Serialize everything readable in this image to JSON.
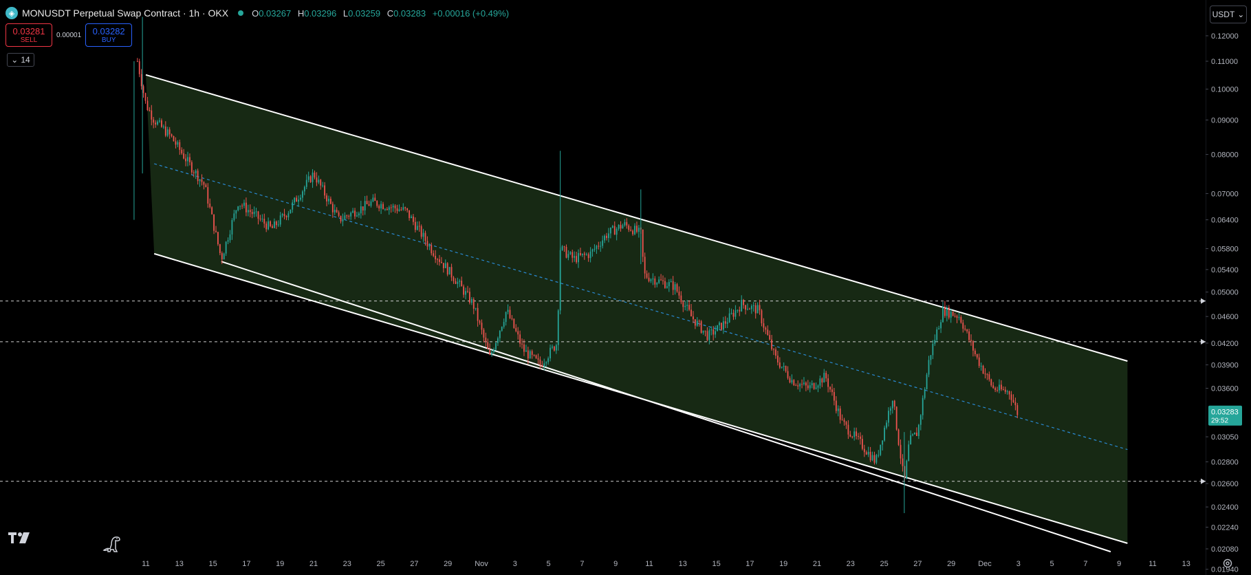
{
  "header": {
    "symbol_glyph": "◈",
    "title": "MONUSDT Perpetual Swap Contract · 1h · OKX",
    "ohlc": {
      "o_label": "O",
      "o_value": "0.03267",
      "h_label": "H",
      "h_value": "0.03296",
      "l_label": "L",
      "l_value": "0.03259",
      "c_label": "C",
      "c_value": "0.03283",
      "change": "+0.00016 (+0.49%)"
    }
  },
  "trade": {
    "sell_price": "0.03281",
    "sell_label": "SELL",
    "spread": "0.00001",
    "buy_price": "0.03282",
    "buy_label": "BUY"
  },
  "indicator_toggle": {
    "chevron": "⌄",
    "value": "14"
  },
  "currency": {
    "label": "USDT",
    "chevron": "⌄"
  },
  "colors": {
    "up": "#26a69a",
    "down": "#ef5350",
    "channel_fill": "#1b3018",
    "channel_line": "#ffffff",
    "midline": "#2a8ad4",
    "current_price_bg": "#26a69a",
    "horizontal_line": "#cfcfcf"
  },
  "chart_data": {
    "type": "candlestick",
    "price_axis_labels": [
      "0.12000",
      "0.11000",
      "0.10000",
      "0.09000",
      "0.08000",
      "0.07000",
      "0.06400",
      "0.05800",
      "0.05400",
      "0.05000",
      "0.04600",
      "0.04200",
      "0.03900",
      "0.03600",
      "0.03283",
      "0.03050",
      "0.02800",
      "0.02600",
      "0.02400",
      "0.02240",
      "0.02080",
      "0.01940"
    ],
    "current_price": {
      "value": "0.03283",
      "countdown": "29:52"
    },
    "time_axis_labels": [
      "11",
      "13",
      "15",
      "17",
      "19",
      "21",
      "23",
      "25",
      "27",
      "29",
      "Nov",
      "3",
      "5",
      "7",
      "9",
      "11",
      "13",
      "15",
      "17",
      "19",
      "21",
      "23",
      "25",
      "27",
      "29",
      "Dec",
      "3",
      "5",
      "7",
      "9",
      "11",
      "13"
    ],
    "horizontal_levels": [
      0.0485,
      0.0422,
      0.0262
    ],
    "price_path": [
      {
        "t": 0,
        "p": 0.11
      },
      {
        "t": 0.5,
        "p": 0.095
      },
      {
        "t": 1.0,
        "p": 0.09
      },
      {
        "t": 2.0,
        "p": 0.085
      },
      {
        "t": 3.0,
        "p": 0.078
      },
      {
        "t": 4.0,
        "p": 0.072
      },
      {
        "t": 5.0,
        "p": 0.056
      },
      {
        "t": 6.0,
        "p": 0.068
      },
      {
        "t": 7.0,
        "p": 0.065
      },
      {
        "t": 8.0,
        "p": 0.062
      },
      {
        "t": 9.0,
        "p": 0.066
      },
      {
        "t": 10.5,
        "p": 0.075
      },
      {
        "t": 12.0,
        "p": 0.064
      },
      {
        "t": 14.0,
        "p": 0.068
      },
      {
        "t": 16.0,
        "p": 0.066
      },
      {
        "t": 17.5,
        "p": 0.058
      },
      {
        "t": 19.0,
        "p": 0.052
      },
      {
        "t": 20.0,
        "p": 0.048
      },
      {
        "t": 21.0,
        "p": 0.04
      },
      {
        "t": 22.0,
        "p": 0.047
      },
      {
        "t": 23.0,
        "p": 0.041
      },
      {
        "t": 24.0,
        "p": 0.039
      },
      {
        "t": 25.0,
        "p": 0.042
      },
      {
        "t": 25.2,
        "p": 0.058
      },
      {
        "t": 26.0,
        "p": 0.056
      },
      {
        "t": 27.0,
        "p": 0.057
      },
      {
        "t": 28.0,
        "p": 0.061
      },
      {
        "t": 29.0,
        "p": 0.063
      },
      {
        "t": 30.0,
        "p": 0.061
      },
      {
        "t": 30.2,
        "p": 0.053
      },
      {
        "t": 31.0,
        "p": 0.052
      },
      {
        "t": 32.0,
        "p": 0.051
      },
      {
        "t": 33.0,
        "p": 0.046
      },
      {
        "t": 34.0,
        "p": 0.043
      },
      {
        "t": 35.0,
        "p": 0.045
      },
      {
        "t": 36.0,
        "p": 0.048
      },
      {
        "t": 37.0,
        "p": 0.047
      },
      {
        "t": 38.0,
        "p": 0.04
      },
      {
        "t": 39.0,
        "p": 0.037
      },
      {
        "t": 40.0,
        "p": 0.036
      },
      {
        "t": 41.0,
        "p": 0.0375
      },
      {
        "t": 42.0,
        "p": 0.032
      },
      {
        "t": 43.0,
        "p": 0.03
      },
      {
        "t": 44.0,
        "p": 0.028
      },
      {
        "t": 45.0,
        "p": 0.035
      },
      {
        "t": 45.7,
        "p": 0.026
      },
      {
        "t": 46.0,
        "p": 0.03
      },
      {
        "t": 46.5,
        "p": 0.031
      },
      {
        "t": 47.2,
        "p": 0.04
      },
      {
        "t": 48.0,
        "p": 0.047
      },
      {
        "t": 49.0,
        "p": 0.046
      },
      {
        "t": 50.0,
        "p": 0.04
      },
      {
        "t": 51.0,
        "p": 0.036
      },
      {
        "t": 52.0,
        "p": 0.0355
      },
      {
        "t": 52.5,
        "p": 0.0328
      }
    ],
    "channel": {
      "upper_start": {
        "t": 0.5,
        "p": 0.105
      },
      "upper_end": {
        "t": 59.0,
        "p": 0.0395
      },
      "lower_start": {
        "t": 1.0,
        "p": 0.057
      },
      "lower_end": {
        "t": 59.0,
        "p": 0.0212
      },
      "mid_start": {
        "t": 1.0,
        "p": 0.0775
      },
      "mid_end": {
        "t": 59.0,
        "p": 0.0292
      },
      "support_start": {
        "t": 5.0,
        "p": 0.0555
      },
      "support_end": {
        "t": 58.0,
        "p": 0.0206
      }
    }
  }
}
